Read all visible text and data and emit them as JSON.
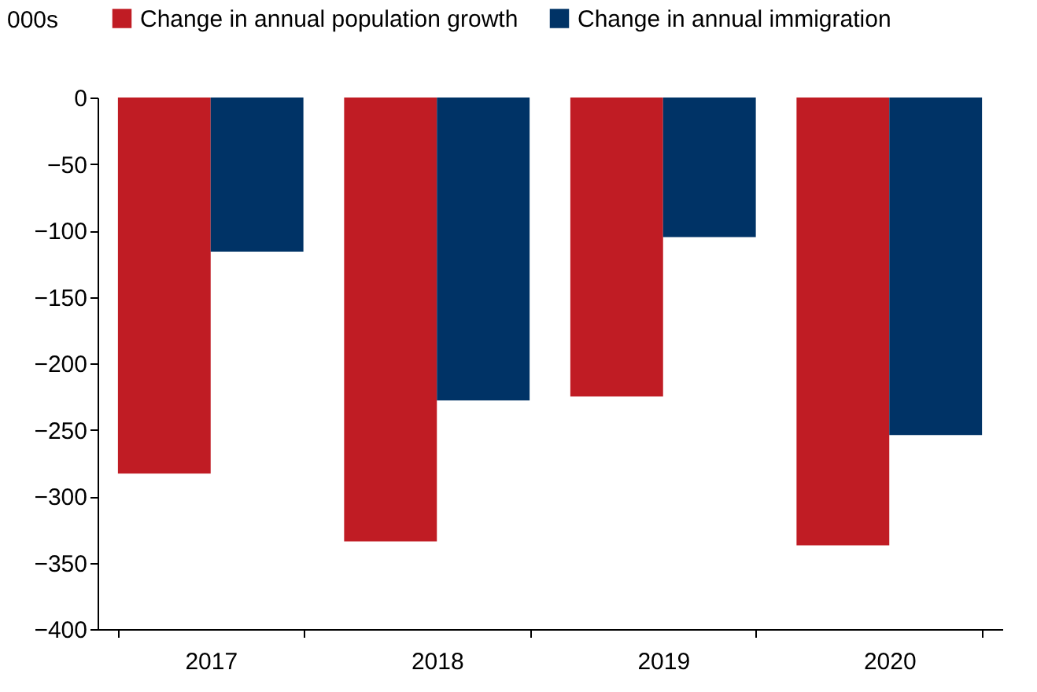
{
  "chart_data": {
    "type": "bar",
    "ylabel": "000s",
    "categories": [
      "2017",
      "2018",
      "2019",
      "2020"
    ],
    "series": [
      {
        "name": "Change in annual population growth",
        "color": "#c01c24",
        "values": [
          -283,
          -334,
          -225,
          -337
        ]
      },
      {
        "name": "Change in annual immigration",
        "color": "#003366",
        "values": [
          -116,
          -228,
          -105,
          -254
        ]
      }
    ],
    "ylim": [
      -400,
      0
    ],
    "yticks": [
      0,
      -50,
      -100,
      -150,
      -200,
      -250,
      -300,
      -350,
      -400
    ],
    "grid": false,
    "legend": "top"
  }
}
